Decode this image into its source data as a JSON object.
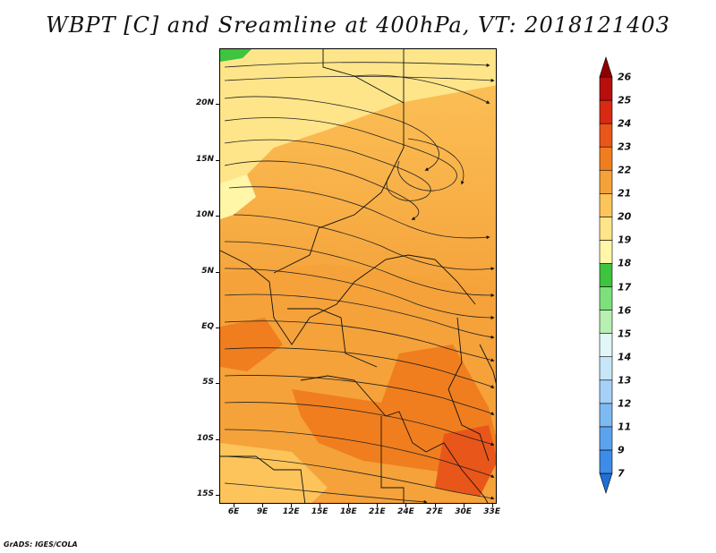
{
  "title": "WBPT [C] and Sreamline at 400hPa, VT: 2018121403",
  "credit": "GrADS: IGES/COLA",
  "map": {
    "lat_labels": [
      "20N",
      "15N",
      "10N",
      "5N",
      "EQ",
      "5S",
      "10S",
      "15S"
    ],
    "lat_values": [
      20,
      15,
      10,
      5,
      0,
      -5,
      -10,
      -15
    ],
    "lon_labels": [
      "6E",
      "9E",
      "12E",
      "15E",
      "18E",
      "21E",
      "24E",
      "27E",
      "30E",
      "33E"
    ],
    "lon_values": [
      6,
      9,
      12,
      15,
      18,
      21,
      24,
      27,
      30,
      33
    ],
    "lon_range": [
      4.5,
      33.5
    ],
    "lat_range": [
      -15.8,
      25
    ]
  },
  "colorbar": {
    "labels": [
      "7",
      "9",
      "11",
      "12",
      "13",
      "14",
      "15",
      "16",
      "17",
      "18",
      "19",
      "20",
      "21",
      "22",
      "23",
      "24",
      "25",
      "26"
    ],
    "colors": [
      "#1f6fd6",
      "#3d8ce8",
      "#5ba3ee",
      "#7ebaf2",
      "#a5d1f6",
      "#c7e6f8",
      "#e3f6f7",
      "#b7f0b0",
      "#7ee07a",
      "#3ec43e",
      "#fff6a8",
      "#ffe58a",
      "#fcc45a",
      "#f5a23a",
      "#f07e1e",
      "#e9561a",
      "#d82a12",
      "#b80e0e",
      "#900000"
    ]
  }
}
